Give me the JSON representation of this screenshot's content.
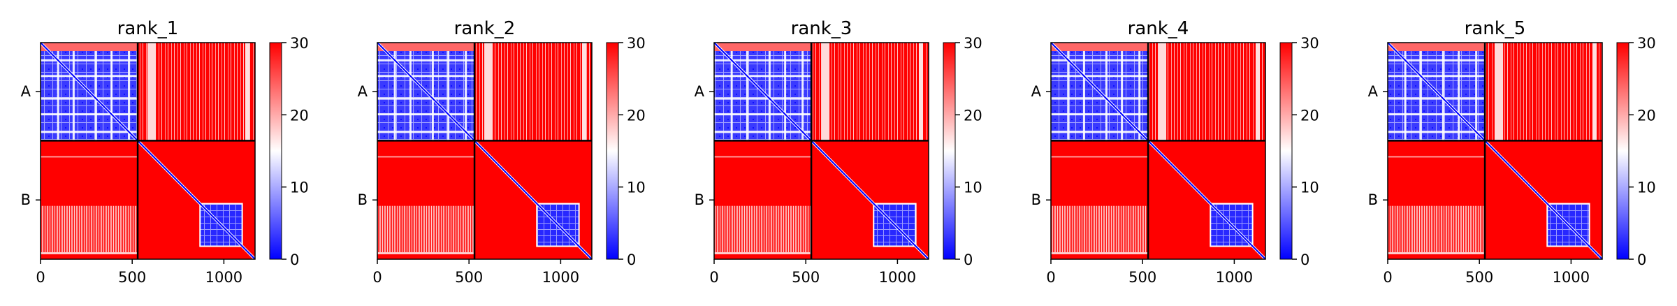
{
  "chart_data": [
    {
      "type": "heatmap",
      "title": "rank_1",
      "x_ticks": [
        0,
        500,
        1000
      ],
      "y_tick_labels": [
        "A",
        "B"
      ],
      "chain_boundary": 530,
      "total_length": 1170,
      "colorbar": {
        "min": 0,
        "max": 30,
        "ticks": [
          0,
          10,
          20,
          30
        ],
        "colormap": "bwr"
      }
    },
    {
      "type": "heatmap",
      "title": "rank_2",
      "x_ticks": [
        0,
        500,
        1000
      ],
      "y_tick_labels": [
        "A",
        "B"
      ],
      "chain_boundary": 530,
      "total_length": 1170,
      "colorbar": {
        "min": 0,
        "max": 30,
        "ticks": [
          0,
          10,
          20,
          30
        ],
        "colormap": "bwr"
      }
    },
    {
      "type": "heatmap",
      "title": "rank_3",
      "x_ticks": [
        0,
        500,
        1000
      ],
      "y_tick_labels": [
        "A",
        "B"
      ],
      "chain_boundary": 530,
      "total_length": 1170,
      "colorbar": {
        "min": 0,
        "max": 30,
        "ticks": [
          0,
          10,
          20,
          30
        ],
        "colormap": "bwr"
      }
    },
    {
      "type": "heatmap",
      "title": "rank_4",
      "x_ticks": [
        0,
        500,
        1000
      ],
      "y_tick_labels": [
        "A",
        "B"
      ],
      "chain_boundary": 530,
      "total_length": 1170,
      "colorbar": {
        "min": 0,
        "max": 30,
        "ticks": [
          0,
          10,
          20,
          30
        ],
        "colormap": "bwr"
      }
    },
    {
      "type": "heatmap",
      "title": "rank_5",
      "x_ticks": [
        0,
        500,
        1000
      ],
      "y_tick_labels": [
        "A",
        "B"
      ],
      "chain_boundary": 530,
      "total_length": 1170,
      "colorbar": {
        "min": 0,
        "max": 30,
        "ticks": [
          0,
          10,
          20,
          30
        ],
        "colormap": "bwr"
      }
    }
  ],
  "colors": {
    "low": "#0000ff",
    "mid": "#ffffff",
    "high": "#ff0000"
  }
}
